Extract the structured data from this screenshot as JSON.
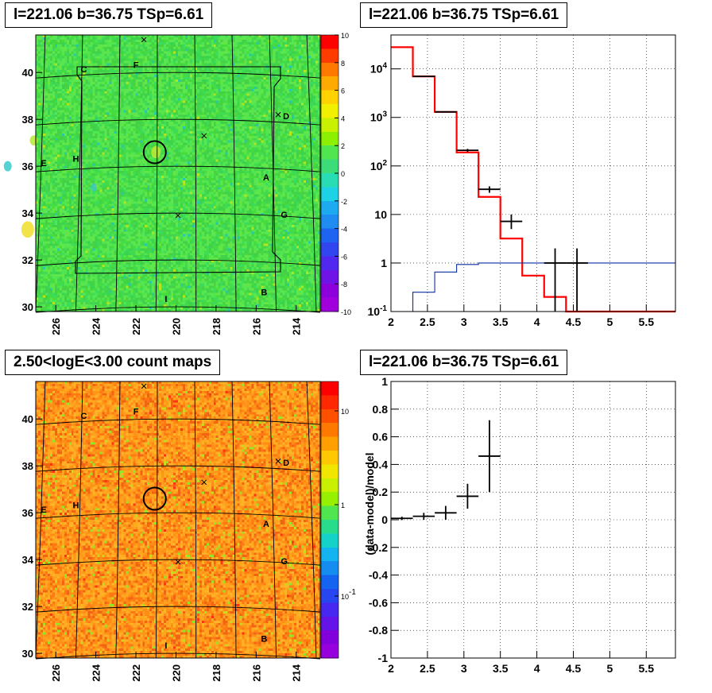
{
  "panels": {
    "tl_title": "l=221.06 b=36.75 TSp=6.61",
    "tr_title": "l=221.06 b=36.75 TSp=6.61",
    "bl_title": "2.50<logE<3.00 count maps",
    "br_title": "l=221.06 b=36.75 TSp=6.61"
  },
  "colors": {
    "data": "#000000",
    "model_red": "#ff0000",
    "model_blue": "#0a2fa0",
    "grid": "#000000"
  },
  "chart_data": [
    {
      "type": "heatmap",
      "panel": "top-left",
      "title": "l=221.06 b=36.75 TSp=6.61",
      "x_ticks": [
        "226",
        "224",
        "222",
        "220",
        "218",
        "216",
        "214"
      ],
      "y_ticks": [
        "30",
        "32",
        "34",
        "36",
        "38",
        "40"
      ],
      "xlim": [
        227,
        212.8
      ],
      "ylim": [
        29.8,
        41.6
      ],
      "colorbar": {
        "ticks": [
          "10",
          "8",
          "6",
          "4",
          "2",
          "0",
          "-2",
          "-4",
          "-6",
          "-8",
          "-10"
        ],
        "range": [
          -10,
          10
        ]
      },
      "labels": [
        "C",
        "F",
        "D",
        "E",
        "H",
        "A",
        "G",
        "B",
        "I"
      ],
      "source": {
        "l": 221.06,
        "b": 36.75
      }
    },
    {
      "type": "line",
      "panel": "top-right",
      "title": "l=221.06 b=36.75 TSp=6.61",
      "xlim": [
        2,
        5.9
      ],
      "ylim": [
        0.1,
        50000
      ],
      "yscale": "log",
      "x_ticks": [
        "2",
        "2.5",
        "3",
        "3.5",
        "4",
        "4.5",
        "5",
        "5.5"
      ],
      "y_ticks": [
        "10^-1",
        "1",
        "10",
        "10^2",
        "10^3",
        "10^4"
      ],
      "grid": true,
      "series": [
        {
          "style": "step-red",
          "edges": [
            2.0,
            2.3,
            2.6,
            2.9,
            3.2,
            3.5,
            3.8,
            4.1,
            4.4,
            5.9
          ],
          "values": [
            28000,
            7000,
            1300,
            190,
            23,
            3.2,
            0.55,
            0.2,
            0.1
          ]
        },
        {
          "style": "step-blue",
          "edges": [
            2.3,
            2.6,
            2.9,
            3.2,
            5.9
          ],
          "values": [
            0.25,
            0.65,
            0.93,
            1.0
          ]
        },
        {
          "style": "points",
          "x": [
            2.45,
            2.75,
            3.05,
            3.35,
            3.65,
            4.25,
            4.55
          ],
          "xerr": [
            0.15,
            0.15,
            0.15,
            0.15,
            0.15,
            0.15,
            0.15
          ],
          "y": [
            7000,
            1300,
            210,
            33,
            7.2,
            1.0,
            1.0
          ],
          "ylo": [
            6900,
            1270,
            195,
            28,
            5.0,
            0.1,
            0.1
          ],
          "yhi": [
            7100,
            1330,
            225,
            38,
            10,
            2.0,
            2.0
          ]
        }
      ]
    },
    {
      "type": "heatmap",
      "panel": "bottom-left",
      "title": "2.50<logE<3.00 count maps",
      "x_ticks": [
        "226",
        "224",
        "222",
        "220",
        "218",
        "216",
        "214"
      ],
      "y_ticks": [
        "30",
        "32",
        "34",
        "36",
        "38",
        "40"
      ],
      "xlim": [
        227,
        212.8
      ],
      "ylim": [
        29.8,
        41.6
      ],
      "colorbar": {
        "ticks": [
          "10",
          "1",
          "10^-1"
        ],
        "scale": "log"
      },
      "labels": [
        "C",
        "F",
        "D",
        "E",
        "H",
        "A",
        "G",
        "B",
        "I"
      ]
    },
    {
      "type": "scatter",
      "panel": "bottom-right",
      "title": "l=221.06 b=36.75 TSp=6.61",
      "ylabel": "(data-model)/model",
      "xlim": [
        2,
        5.9
      ],
      "ylim": [
        -1,
        1
      ],
      "x_ticks": [
        "2",
        "2.5",
        "3",
        "3.5",
        "4",
        "4.5",
        "5",
        "5.5"
      ],
      "y_ticks": [
        "-1",
        "-0.8",
        "-0.6",
        "-0.4",
        "-0.2",
        "0",
        "0.2",
        "0.4",
        "0.6",
        "0.8",
        "1"
      ],
      "grid": true,
      "points": [
        {
          "x": 2.15,
          "xerr": 0.15,
          "y": 0.01,
          "yerr": 0.012
        },
        {
          "x": 2.45,
          "xerr": 0.15,
          "y": 0.025,
          "yerr": 0.025
        },
        {
          "x": 2.75,
          "xerr": 0.15,
          "y": 0.05,
          "yerr": 0.05
        },
        {
          "x": 3.05,
          "xerr": 0.15,
          "y": 0.17,
          "yerr": 0.09
        },
        {
          "x": 3.35,
          "xerr": 0.15,
          "y": 0.46,
          "yerr": 0.26
        }
      ]
    }
  ]
}
